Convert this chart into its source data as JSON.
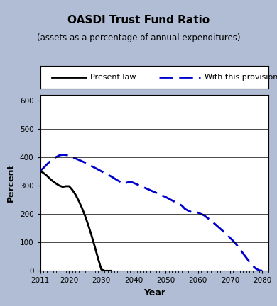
{
  "title": "OASDI Trust Fund Ratio",
  "subtitle": "(assets as a percentage of annual expenditures)",
  "xlabel": "Year",
  "ylabel": "Percent",
  "xlim": [
    2011,
    2082
  ],
  "ylim": [
    0,
    620
  ],
  "yticks": [
    0,
    100,
    200,
    300,
    400,
    500,
    600
  ],
  "xticks": [
    2011,
    2020,
    2030,
    2040,
    2050,
    2060,
    2070,
    2080
  ],
  "background_outer": "#b0bdd4",
  "background_plot": "#ffffff",
  "border_color": "#6b0a2a",
  "present_law": {
    "x": [
      2011,
      2012,
      2013,
      2014,
      2015,
      2016,
      2017,
      2018,
      2019,
      2020,
      2021,
      2022,
      2023,
      2024,
      2025,
      2026,
      2027,
      2028,
      2029,
      2030,
      2031,
      2032,
      2033
    ],
    "y": [
      352,
      345,
      336,
      325,
      315,
      307,
      300,
      296,
      298,
      298,
      285,
      268,
      246,
      221,
      192,
      159,
      123,
      84,
      43,
      5,
      0,
      0,
      0
    ],
    "color": "#000000",
    "linewidth": 2.0,
    "label": "Present law"
  },
  "provision": {
    "x": [
      2011,
      2012,
      2013,
      2014,
      2015,
      2016,
      2017,
      2018,
      2019,
      2020,
      2021,
      2022,
      2023,
      2024,
      2025,
      2026,
      2027,
      2028,
      2029,
      2030,
      2031,
      2032,
      2033,
      2034,
      2035,
      2036,
      2037,
      2038,
      2039,
      2040,
      2041,
      2042,
      2043,
      2044,
      2045,
      2046,
      2047,
      2048,
      2049,
      2050,
      2051,
      2052,
      2053,
      2054,
      2055,
      2056,
      2057,
      2058,
      2059,
      2060,
      2061,
      2062,
      2063,
      2064,
      2065,
      2066,
      2067,
      2068,
      2069,
      2070,
      2071,
      2072,
      2073,
      2074,
      2075,
      2076,
      2077,
      2078,
      2079,
      2080
    ],
    "y": [
      352,
      362,
      374,
      385,
      395,
      401,
      407,
      409,
      408,
      407,
      401,
      396,
      391,
      386,
      381,
      375,
      369,
      363,
      357,
      351,
      345,
      339,
      333,
      326,
      319,
      313,
      307,
      311,
      314,
      310,
      305,
      300,
      295,
      290,
      285,
      280,
      275,
      270,
      265,
      260,
      254,
      248,
      242,
      236,
      230,
      218,
      212,
      207,
      206,
      205,
      200,
      195,
      186,
      178,
      168,
      158,
      148,
      138,
      128,
      116,
      105,
      92,
      77,
      62,
      47,
      32,
      18,
      8,
      2,
      0
    ],
    "color": "#0000cc",
    "linewidth": 2.0,
    "label": "With this provision"
  }
}
